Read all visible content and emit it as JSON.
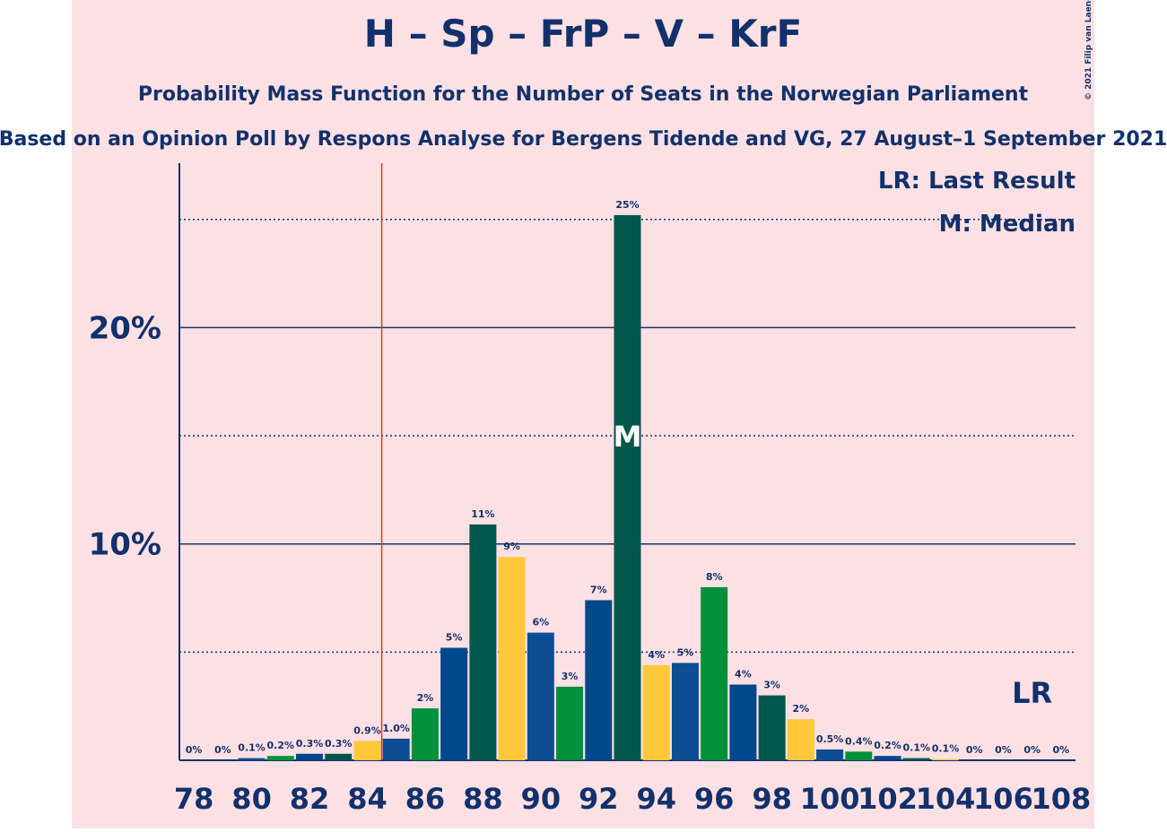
{
  "chart_data": {
    "type": "bar",
    "title": "H – Sp – FrP – V – KrF",
    "subtitle": "Probability Mass Function for the Number of Seats in the Norwegian Parliament",
    "subtitle2": "Based on an Opinion Poll by Respons Analyse for Bergens Tidende and VG, 27 August–1 September 2021",
    "copyright": "© 2021 Filip van Laenen",
    "x": [
      78,
      79,
      80,
      81,
      82,
      83,
      84,
      85,
      86,
      87,
      88,
      89,
      90,
      91,
      92,
      93,
      94,
      95,
      96,
      97,
      98,
      99,
      100,
      101,
      102,
      103,
      104,
      105,
      106,
      107,
      108
    ],
    "values": [
      0,
      0,
      0.1,
      0.2,
      0.3,
      0.3,
      0.9,
      1.0,
      2.4,
      5.2,
      10.9,
      9.4,
      5.9,
      3.4,
      7.4,
      25.2,
      4.4,
      4.5,
      8.0,
      3.5,
      3.0,
      1.9,
      0.5,
      0.4,
      0.2,
      0.1,
      0.06,
      0,
      0,
      0,
      0
    ],
    "value_labels": [
      "0%",
      "0%",
      "0.1%",
      "0.2%",
      "0.3%",
      "0.3%",
      "0.9%",
      "1.0%",
      "2%",
      "5%",
      "11%",
      "9%",
      "6%",
      "3%",
      "7%",
      "25%",
      "4%",
      "5%",
      "8%",
      "4%",
      "3%",
      "2%",
      "0.5%",
      "0.4%",
      "0.2%",
      "0.1%",
      "0.1%",
      "0%",
      "0%",
      "0%",
      "0%"
    ],
    "palette": [
      "#0b4e92",
      "#00913a",
      "#00488c",
      "#00584a",
      "#ffc83a"
    ],
    "palette_start": 80,
    "xlim": [
      77.5,
      108.5
    ],
    "xticks": [
      78,
      80,
      82,
      84,
      86,
      88,
      90,
      92,
      94,
      96,
      98,
      100,
      102,
      104,
      106,
      108
    ],
    "ylim": [
      0,
      27.6
    ],
    "yticks": [
      {
        "value": 10,
        "label": "10%"
      },
      {
        "value": 20,
        "label": "20%"
      }
    ],
    "minor_yticks": [
      5,
      15,
      25
    ],
    "majority_line": 84.5,
    "median": 93,
    "median_label": "M",
    "last_result": 107,
    "last_result_label": "LR",
    "legend": [
      "LR: Last Result",
      "M: Median"
    ]
  }
}
